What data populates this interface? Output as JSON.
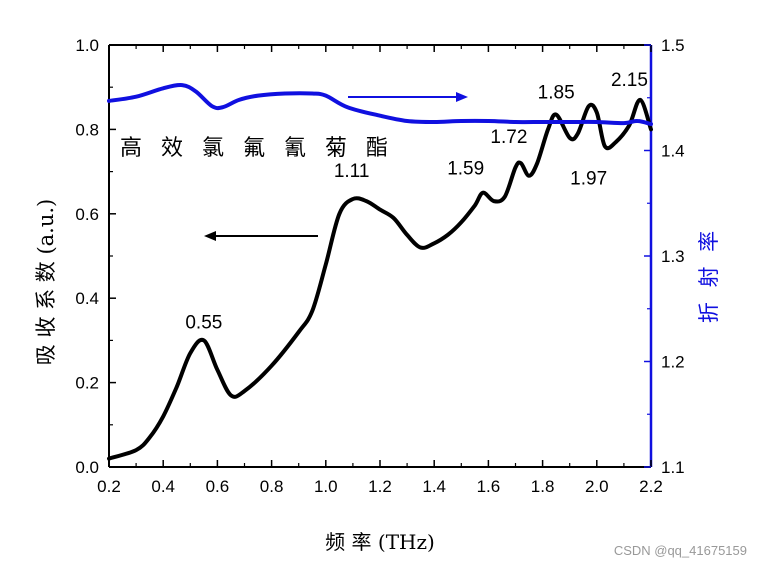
{
  "chart_data": {
    "type": "line",
    "xlabel": "频 率 (THz)",
    "ylabel_left": "吸 收 系 数 (a.u.)",
    "ylabel_right": "折 射 率",
    "sample_label": "高 效 氯 氟 氰 菊 酯",
    "xlim": [
      0.2,
      2.2
    ],
    "ylim_left": [
      0.0,
      1.0
    ],
    "ylim_right": [
      1.1,
      1.5
    ],
    "x_ticks": [
      "0.2",
      "0.4",
      "0.6",
      "0.8",
      "1.0",
      "1.2",
      "1.4",
      "1.6",
      "1.8",
      "2.0",
      "2.2"
    ],
    "y_ticks_left": [
      "0.0",
      "0.2",
      "0.4",
      "0.6",
      "0.8",
      "1.0"
    ],
    "y_ticks_right": [
      "1.1",
      "1.2",
      "1.3",
      "1.4",
      "1.5"
    ],
    "grid": false,
    "colors": {
      "absorption": "#000000",
      "refractive": "#1010e0",
      "right_axis": "#1010e0"
    },
    "series": [
      {
        "axis": "left",
        "points": [
          [
            0.2,
            0.02
          ],
          [
            0.3,
            0.04
          ],
          [
            0.35,
            0.07
          ],
          [
            0.4,
            0.12
          ],
          [
            0.45,
            0.19
          ],
          [
            0.5,
            0.27
          ],
          [
            0.55,
            0.3
          ],
          [
            0.6,
            0.23
          ],
          [
            0.65,
            0.17
          ],
          [
            0.7,
            0.18
          ],
          [
            0.8,
            0.24
          ],
          [
            0.9,
            0.32
          ],
          [
            0.95,
            0.37
          ],
          [
            1.0,
            0.48
          ],
          [
            1.05,
            0.6
          ],
          [
            1.1,
            0.635
          ],
          [
            1.15,
            0.63
          ],
          [
            1.2,
            0.61
          ],
          [
            1.25,
            0.59
          ],
          [
            1.3,
            0.55
          ],
          [
            1.35,
            0.52
          ],
          [
            1.4,
            0.53
          ],
          [
            1.45,
            0.55
          ],
          [
            1.5,
            0.58
          ],
          [
            1.55,
            0.62
          ],
          [
            1.58,
            0.65
          ],
          [
            1.62,
            0.63
          ],
          [
            1.66,
            0.64
          ],
          [
            1.7,
            0.71
          ],
          [
            1.72,
            0.72
          ],
          [
            1.75,
            0.69
          ],
          [
            1.78,
            0.72
          ],
          [
            1.82,
            0.8
          ],
          [
            1.85,
            0.835
          ],
          [
            1.9,
            0.78
          ],
          [
            1.93,
            0.79
          ],
          [
            1.97,
            0.855
          ],
          [
            2.0,
            0.84
          ],
          [
            2.03,
            0.76
          ],
          [
            2.07,
            0.77
          ],
          [
            2.12,
            0.81
          ],
          [
            2.16,
            0.87
          ],
          [
            2.2,
            0.8
          ]
        ]
      },
      {
        "axis": "right",
        "points": [
          [
            0.2,
            1.447
          ],
          [
            0.3,
            1.451
          ],
          [
            0.4,
            1.459
          ],
          [
            0.47,
            1.462
          ],
          [
            0.52,
            1.456
          ],
          [
            0.58,
            1.442
          ],
          [
            0.62,
            1.441
          ],
          [
            0.68,
            1.448
          ],
          [
            0.75,
            1.452
          ],
          [
            0.85,
            1.454
          ],
          [
            0.95,
            1.454
          ],
          [
            1.0,
            1.452
          ],
          [
            1.08,
            1.441
          ],
          [
            1.2,
            1.433
          ],
          [
            1.3,
            1.428
          ],
          [
            1.4,
            1.427
          ],
          [
            1.5,
            1.428
          ],
          [
            1.6,
            1.428
          ],
          [
            1.7,
            1.427
          ],
          [
            1.8,
            1.427
          ],
          [
            1.9,
            1.427
          ],
          [
            2.0,
            1.427
          ],
          [
            2.1,
            1.426
          ],
          [
            2.15,
            1.428
          ],
          [
            2.2,
            1.425
          ]
        ]
      }
    ],
    "annotations": [
      {
        "text": "0.55",
        "x": 0.55,
        "y": 0.3
      },
      {
        "text": "1.11",
        "x": 1.11,
        "y": 0.635
      },
      {
        "text": "1.59",
        "x": 1.59,
        "y": 0.65
      },
      {
        "text": "1.72",
        "x": 1.72,
        "y": 0.72
      },
      {
        "text": "1.85",
        "x": 1.85,
        "y": 0.835
      },
      {
        "text": "1.97",
        "x": 1.97,
        "y": 0.76
      },
      {
        "text": "2.15",
        "x": 2.15,
        "y": 0.87
      }
    ]
  },
  "watermark": "CSDN @qq_41675159"
}
